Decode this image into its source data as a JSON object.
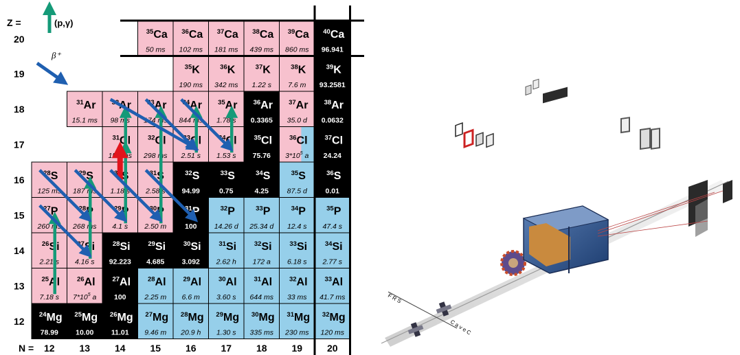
{
  "axis": {
    "z_label": "Z =",
    "n_label": "N =",
    "z_values": [
      "20",
      "19",
      "18",
      "17",
      "16",
      "15",
      "14",
      "13",
      "12"
    ],
    "n_values": [
      "12",
      "13",
      "14",
      "15",
      "16",
      "17",
      "18",
      "19",
      "20"
    ]
  },
  "legend": {
    "pg_label": "(p,γ)",
    "beta_label": "β⁺"
  },
  "colors": {
    "unstable_pos": "#f7c1ce",
    "unstable_neg": "#96cfea",
    "stable": "#000000",
    "arrow_green": "#159a78",
    "arrow_blue": "#1f5fb0",
    "arrow_red": "#e1141c"
  },
  "nuclides": [
    {
      "Z": 20,
      "N": 15,
      "mass": "35",
      "el": "Ca",
      "value": "50 ms",
      "kind": "p"
    },
    {
      "Z": 20,
      "N": 16,
      "mass": "36",
      "el": "Ca",
      "value": "102 ms",
      "kind": "p"
    },
    {
      "Z": 20,
      "N": 17,
      "mass": "37",
      "el": "Ca",
      "value": "181 ms",
      "kind": "p"
    },
    {
      "Z": 20,
      "N": 18,
      "mass": "38",
      "el": "Ca",
      "value": "439 ms",
      "kind": "p"
    },
    {
      "Z": 20,
      "N": 19,
      "mass": "39",
      "el": "Ca",
      "value": "860 ms",
      "kind": "p"
    },
    {
      "Z": 20,
      "N": 20,
      "mass": "40",
      "el": "Ca",
      "value": "96.941",
      "kind": "s"
    },
    {
      "Z": 19,
      "N": 16,
      "mass": "35",
      "el": "K",
      "value": "190 ms",
      "kind": "p"
    },
    {
      "Z": 19,
      "N": 17,
      "mass": "36",
      "el": "K",
      "value": "342 ms",
      "kind": "p"
    },
    {
      "Z": 19,
      "N": 18,
      "mass": "37",
      "el": "K",
      "value": "1.22 s",
      "kind": "p"
    },
    {
      "Z": 19,
      "N": 19,
      "mass": "38",
      "el": "K",
      "value": "7.6 m",
      "kind": "p"
    },
    {
      "Z": 19,
      "N": 20,
      "mass": "39",
      "el": "K",
      "value": "93.2581",
      "kind": "s"
    },
    {
      "Z": 18,
      "N": 13,
      "mass": "31",
      "el": "Ar",
      "value": "15.1 ms",
      "kind": "p"
    },
    {
      "Z": 18,
      "N": 14,
      "mass": "32",
      "el": "Ar",
      "value": "98 ms",
      "kind": "p"
    },
    {
      "Z": 18,
      "N": 15,
      "mass": "33",
      "el": "Ar",
      "value": "174 ms",
      "kind": "p"
    },
    {
      "Z": 18,
      "N": 16,
      "mass": "34",
      "el": "Ar",
      "value": "844 ms",
      "kind": "p"
    },
    {
      "Z": 18,
      "N": 17,
      "mass": "35",
      "el": "Ar",
      "value": "1.78 s",
      "kind": "p"
    },
    {
      "Z": 18,
      "N": 18,
      "mass": "36",
      "el": "Ar",
      "value": "0.3365",
      "kind": "s"
    },
    {
      "Z": 18,
      "N": 19,
      "mass": "37",
      "el": "Ar",
      "value": "35.0 d",
      "kind": "p"
    },
    {
      "Z": 18,
      "N": 20,
      "mass": "38",
      "el": "Ar",
      "value": "0.0632",
      "kind": "s"
    },
    {
      "Z": 17,
      "N": 14,
      "mass": "31",
      "el": "Cl",
      "value": "150 ms",
      "kind": "p"
    },
    {
      "Z": 17,
      "N": 15,
      "mass": "32",
      "el": "Cl",
      "value": "298 ms",
      "kind": "p"
    },
    {
      "Z": 17,
      "N": 16,
      "mass": "33",
      "el": "Cl",
      "value": "2.51 s",
      "kind": "p"
    },
    {
      "Z": 17,
      "N": 17,
      "mass": "34",
      "el": "Cl",
      "value": "1.53 s",
      "kind": "p"
    },
    {
      "Z": 17,
      "N": 18,
      "mass": "35",
      "el": "Cl",
      "value": "75.76",
      "kind": "s"
    },
    {
      "Z": 17,
      "N": 19,
      "mass": "36",
      "el": "Cl",
      "value": "3*10",
      "exp": "5",
      "unit": "a",
      "kind": "mix"
    },
    {
      "Z": 17,
      "N": 20,
      "mass": "37",
      "el": "Cl",
      "value": "24.24",
      "kind": "s"
    },
    {
      "Z": 16,
      "N": 12,
      "mass": "28",
      "el": "S",
      "value": "125 ms",
      "kind": "p"
    },
    {
      "Z": 16,
      "N": 13,
      "mass": "29",
      "el": "S",
      "value": "187 ms",
      "kind": "p"
    },
    {
      "Z": 16,
      "N": 14,
      "mass": "30",
      "el": "S",
      "value": "1.18 s",
      "kind": "p"
    },
    {
      "Z": 16,
      "N": 15,
      "mass": "31",
      "el": "S",
      "value": "2.58 s",
      "kind": "p"
    },
    {
      "Z": 16,
      "N": 16,
      "mass": "32",
      "el": "S",
      "value": "94.99",
      "kind": "s"
    },
    {
      "Z": 16,
      "N": 17,
      "mass": "33",
      "el": "S",
      "value": "0.75",
      "kind": "s"
    },
    {
      "Z": 16,
      "N": 18,
      "mass": "34",
      "el": "S",
      "value": "4.25",
      "kind": "s"
    },
    {
      "Z": 16,
      "N": 19,
      "mass": "35",
      "el": "S",
      "value": "87.5 d",
      "kind": "n"
    },
    {
      "Z": 16,
      "N": 20,
      "mass": "36",
      "el": "S",
      "value": "0.01",
      "kind": "s"
    },
    {
      "Z": 15,
      "N": 12,
      "mass": "27",
      "el": "P",
      "value": "260 ms",
      "kind": "p"
    },
    {
      "Z": 15,
      "N": 13,
      "mass": "28",
      "el": "P",
      "value": "268 ms",
      "kind": "p"
    },
    {
      "Z": 15,
      "N": 14,
      "mass": "29",
      "el": "P",
      "value": "4.1 s",
      "kind": "p"
    },
    {
      "Z": 15,
      "N": 15,
      "mass": "30",
      "el": "P",
      "value": "2.50 m",
      "kind": "p"
    },
    {
      "Z": 15,
      "N": 16,
      "mass": "31",
      "el": "P",
      "value": "100",
      "kind": "s"
    },
    {
      "Z": 15,
      "N": 17,
      "mass": "32",
      "el": "P",
      "value": "14.26 d",
      "kind": "n"
    },
    {
      "Z": 15,
      "N": 18,
      "mass": "33",
      "el": "P",
      "value": "25.34 d",
      "kind": "n"
    },
    {
      "Z": 15,
      "N": 19,
      "mass": "34",
      "el": "P",
      "value": "12.4 s",
      "kind": "n"
    },
    {
      "Z": 15,
      "N": 20,
      "mass": "35",
      "el": "P",
      "value": "47.4 s",
      "kind": "n"
    },
    {
      "Z": 14,
      "N": 12,
      "mass": "26",
      "el": "Si",
      "value": "2.21 s",
      "kind": "p"
    },
    {
      "Z": 14,
      "N": 13,
      "mass": "27",
      "el": "Si",
      "value": "4.16 s",
      "kind": "p"
    },
    {
      "Z": 14,
      "N": 14,
      "mass": "28",
      "el": "Si",
      "value": "92.223",
      "kind": "s"
    },
    {
      "Z": 14,
      "N": 15,
      "mass": "29",
      "el": "Si",
      "value": "4.685",
      "kind": "s"
    },
    {
      "Z": 14,
      "N": 16,
      "mass": "30",
      "el": "Si",
      "value": "3.092",
      "kind": "s"
    },
    {
      "Z": 14,
      "N": 17,
      "mass": "31",
      "el": "Si",
      "value": "2.62 h",
      "kind": "n"
    },
    {
      "Z": 14,
      "N": 18,
      "mass": "32",
      "el": "Si",
      "value": "172 a",
      "kind": "n"
    },
    {
      "Z": 14,
      "N": 19,
      "mass": "33",
      "el": "Si",
      "value": "6.18 s",
      "kind": "n"
    },
    {
      "Z": 14,
      "N": 20,
      "mass": "34",
      "el": "Si",
      "value": "2.77 s",
      "kind": "n"
    },
    {
      "Z": 13,
      "N": 12,
      "mass": "25",
      "el": "Al",
      "value": "7.18 s",
      "kind": "p"
    },
    {
      "Z": 13,
      "N": 13,
      "mass": "26",
      "el": "Al",
      "value": "7*10",
      "exp": "5",
      "unit": "a",
      "kind": "p"
    },
    {
      "Z": 13,
      "N": 14,
      "mass": "27",
      "el": "Al",
      "value": "100",
      "kind": "s"
    },
    {
      "Z": 13,
      "N": 15,
      "mass": "28",
      "el": "Al",
      "value": "2.25 m",
      "kind": "n"
    },
    {
      "Z": 13,
      "N": 16,
      "mass": "29",
      "el": "Al",
      "value": "6.6 m",
      "kind": "n"
    },
    {
      "Z": 13,
      "N": 17,
      "mass": "30",
      "el": "Al",
      "value": "3.60 s",
      "kind": "n"
    },
    {
      "Z": 13,
      "N": 18,
      "mass": "31",
      "el": "Al",
      "value": "644 ms",
      "kind": "n"
    },
    {
      "Z": 13,
      "N": 19,
      "mass": "32",
      "el": "Al",
      "value": "33 ms",
      "kind": "n"
    },
    {
      "Z": 13,
      "N": 20,
      "mass": "33",
      "el": "Al",
      "value": "41.7 ms",
      "kind": "n"
    },
    {
      "Z": 12,
      "N": 12,
      "mass": "24",
      "el": "Mg",
      "value": "78.99",
      "kind": "s"
    },
    {
      "Z": 12,
      "N": 13,
      "mass": "25",
      "el": "Mg",
      "value": "10.00",
      "kind": "s"
    },
    {
      "Z": 12,
      "N": 14,
      "mass": "26",
      "el": "Mg",
      "value": "11.01",
      "kind": "s"
    },
    {
      "Z": 12,
      "N": 15,
      "mass": "27",
      "el": "Mg",
      "value": "9.46 m",
      "kind": "n"
    },
    {
      "Z": 12,
      "N": 16,
      "mass": "28",
      "el": "Mg",
      "value": "20.9 h",
      "kind": "n"
    },
    {
      "Z": 12,
      "N": 17,
      "mass": "29",
      "el": "Mg",
      "value": "1.30 s",
      "kind": "n"
    },
    {
      "Z": 12,
      "N": 18,
      "mass": "30",
      "el": "Mg",
      "value": "335 ms",
      "kind": "n"
    },
    {
      "Z": 12,
      "N": 19,
      "mass": "31",
      "el": "Mg",
      "value": "230 ms",
      "kind": "n"
    },
    {
      "Z": 12,
      "N": 20,
      "mass": "32",
      "el": "Mg",
      "value": "120 ms",
      "kind": "n"
    }
  ],
  "pathway": {
    "pg_arrows": [
      {
        "from": [
          12,
          13
        ],
        "to": [
          12,
          15
        ]
      },
      {
        "from": [
          13,
          14
        ],
        "to": [
          13,
          16
        ]
      },
      {
        "from": [
          14,
          15
        ],
        "to": [
          14,
          17
        ]
      },
      {
        "from": [
          14,
          17
        ],
        "to": [
          14,
          18
        ]
      },
      {
        "from": [
          15,
          15
        ],
        "to": [
          15,
          18
        ]
      },
      {
        "from": [
          16,
          17
        ],
        "to": [
          16,
          18
        ]
      },
      {
        "from": [
          17,
          17
        ],
        "to": [
          17,
          18
        ]
      }
    ],
    "red_arrows": [
      {
        "from": [
          14,
          16
        ],
        "to": [
          14,
          17
        ]
      }
    ],
    "beta_arrows": [
      {
        "from": [
          12,
          16
        ],
        "to": [
          13,
          15
        ]
      },
      {
        "from": [
          12,
          15
        ],
        "to": [
          13,
          14
        ]
      },
      {
        "from": [
          13,
          16
        ],
        "to": [
          14,
          15
        ]
      },
      {
        "from": [
          14,
          16
        ],
        "to": [
          15,
          15
        ]
      },
      {
        "from": [
          15,
          16
        ],
        "to": [
          16,
          15
        ]
      },
      {
        "from": [
          14,
          18
        ],
        "to": [
          16,
          17
        ]
      },
      {
        "from": [
          15,
          18
        ],
        "to": [
          16,
          17
        ]
      },
      {
        "from": [
          16,
          18
        ],
        "to": [
          17,
          17
        ]
      }
    ]
  },
  "setup": {
    "frs_label": "F R S",
    "cave_label": "C a v e  C"
  }
}
